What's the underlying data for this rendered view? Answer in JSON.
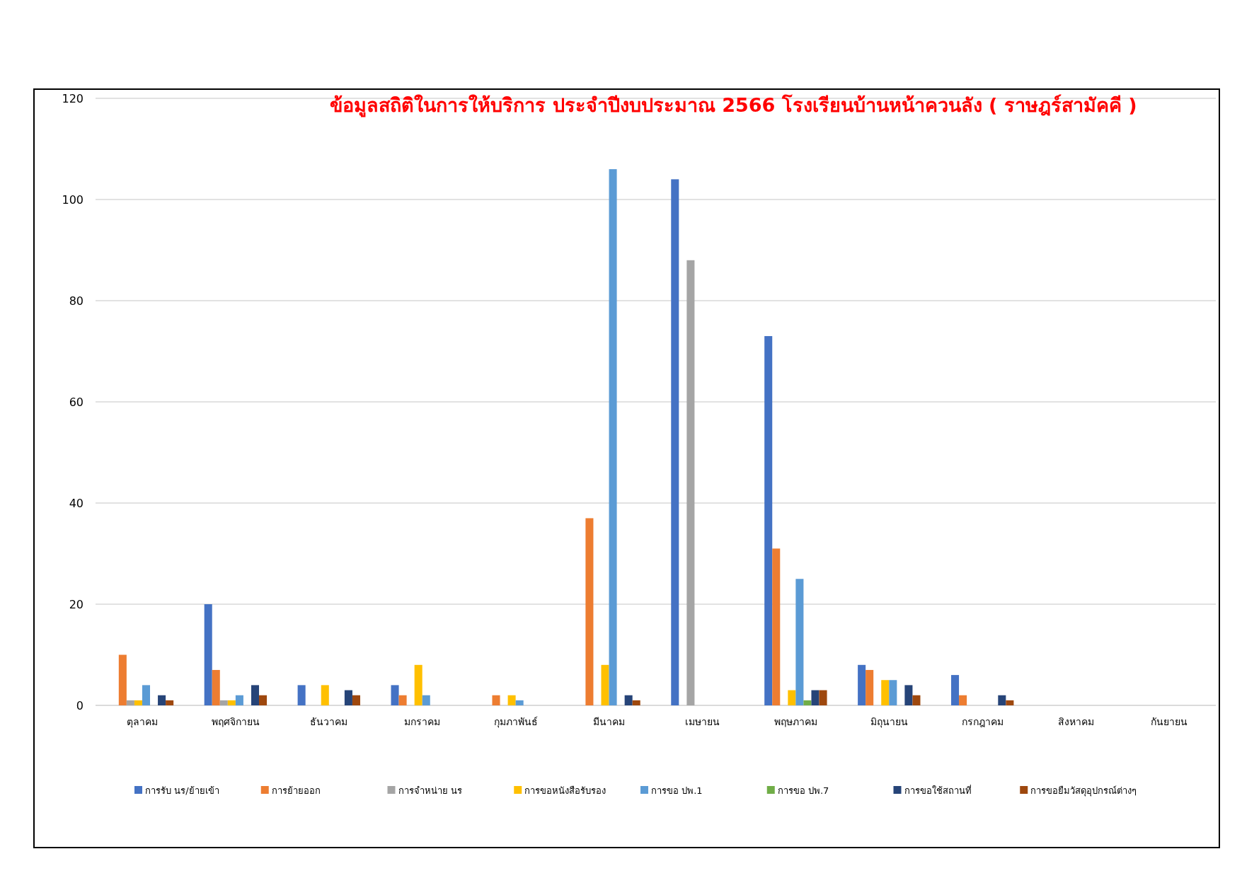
{
  "chart_data": {
    "type": "bar",
    "title": "ข้อมูลสถิติในการให้บริการ ประจำปีงบประมาณ 2566 โรงเรียนบ้านหน้าควนลัง ( ราษฎร์สามัคคี )",
    "categories": [
      "ตุลาคม",
      "พฤศจิกายน",
      "ธันวาคม",
      "มกราคม",
      "กุมภาพันธ์",
      "มีนาคม",
      "เมษายน",
      "พฤษภาคม",
      "มิถุนายน",
      "กรกฎาคม",
      "สิงหาคม",
      "กันยายน"
    ],
    "series": [
      {
        "name": "การรับ นร/ย้ายเข้า",
        "color": "#4472c4",
        "values": [
          0,
          20,
          4,
          4,
          0,
          0,
          104,
          73,
          8,
          6,
          0,
          0
        ]
      },
      {
        "name": "การย้ายออก",
        "color": "#ed7d31",
        "values": [
          10,
          7,
          0,
          2,
          2,
          37,
          0,
          31,
          7,
          2,
          0,
          0
        ]
      },
      {
        "name": "การจำหน่าย นร",
        "color": "#a5a5a5",
        "values": [
          1,
          1,
          0,
          0,
          0,
          0,
          88,
          0,
          0,
          0,
          0,
          0
        ]
      },
      {
        "name": "การขอหนังสือรับรอง",
        "color": "#ffc000",
        "values": [
          1,
          1,
          4,
          8,
          2,
          8,
          0,
          3,
          5,
          0,
          0,
          0
        ]
      },
      {
        "name": "การขอ ปพ.1",
        "color": "#5b9bd5",
        "values": [
          4,
          2,
          0,
          2,
          1,
          106,
          0,
          25,
          5,
          0,
          0,
          0
        ]
      },
      {
        "name": "การขอ ปพ.7",
        "color": "#70ad47",
        "values": [
          0,
          0,
          0,
          0,
          0,
          0,
          0,
          1,
          0,
          0,
          0,
          0
        ]
      },
      {
        "name": "การขอใช้สถานที่",
        "color": "#264478",
        "values": [
          2,
          4,
          3,
          0,
          0,
          2,
          0,
          3,
          4,
          2,
          0,
          0
        ]
      },
      {
        "name": "การขอยืมวัสดุอุปกรณ์ต่างๆ",
        "color": "#9e480e",
        "values": [
          1,
          2,
          2,
          0,
          0,
          1,
          0,
          3,
          2,
          1,
          0,
          0
        ]
      }
    ],
    "ylim": [
      0,
      120
    ],
    "yticks": [
      0,
      20,
      40,
      60,
      80,
      100,
      120
    ],
    "grid": "y",
    "legend": "bottom"
  }
}
